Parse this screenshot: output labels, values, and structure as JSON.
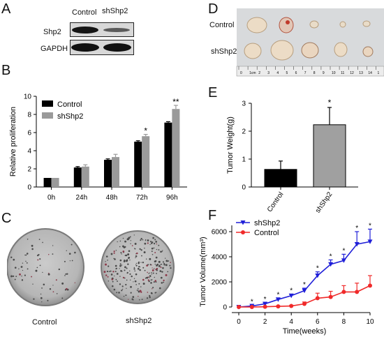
{
  "figure": {
    "panel_labels": [
      "A",
      "B",
      "C",
      "D",
      "E",
      "F"
    ]
  },
  "panel_a": {
    "col_labels": [
      "Control",
      "shShp2"
    ],
    "row_labels": [
      "Shp2",
      "GAPDH"
    ]
  },
  "panel_c": {
    "labels": [
      "Control",
      "shShp2"
    ]
  },
  "panel_d": {
    "row_labels": [
      "Control",
      "shShp2"
    ],
    "ruler_labels": [
      "0",
      "1cm",
      "2",
      "3",
      "4",
      "5",
      "6",
      "7",
      "8",
      "9",
      "10",
      "11",
      "12",
      "13",
      "14",
      "1"
    ]
  },
  "chart_data": [
    {
      "id": "B",
      "type": "bar",
      "ylabel": "Relative proliferation",
      "xlabel": "",
      "categories": [
        "0h",
        "24h",
        "48h",
        "72h",
        "96h"
      ],
      "series": [
        {
          "name": "Control",
          "color": "#000000",
          "values": [
            1.0,
            2.15,
            3.0,
            5.0,
            7.1
          ],
          "errors": [
            0,
            0.1,
            0.1,
            0.1,
            0.1
          ]
        },
        {
          "name": "shShp2",
          "color": "#9a9a9a",
          "values": [
            1.0,
            2.25,
            3.3,
            5.6,
            8.6
          ],
          "errors": [
            0,
            0.2,
            0.3,
            0.2,
            0.4
          ]
        }
      ],
      "significance": [
        "",
        "",
        "",
        "*",
        "**"
      ],
      "ylim": [
        0,
        10
      ],
      "yticks": [
        0,
        2,
        4,
        6,
        8,
        10
      ],
      "legend_position": "top-left"
    },
    {
      "id": "E",
      "type": "bar",
      "ylabel": "Tumor Weight(g)",
      "xlabel": "",
      "categories": [
        "Control",
        "shShp2"
      ],
      "values": [
        0.63,
        2.23
      ],
      "errors": [
        0.3,
        0.62
      ],
      "colors": [
        "#000000",
        "#a0a0a0"
      ],
      "significance": [
        "",
        "*"
      ],
      "ylim": [
        0,
        3
      ],
      "yticks": [
        0,
        1,
        2,
        3
      ]
    },
    {
      "id": "F",
      "type": "line",
      "ylabel": "Tumor Volume(mm³)",
      "xlabel": "Time(weeks)",
      "x": [
        0,
        1,
        2,
        3,
        4,
        5,
        6,
        7,
        8,
        9,
        10
      ],
      "series": [
        {
          "name": "shShp2",
          "color": "#1f1fd8",
          "marker": "triangle-down",
          "values": [
            0,
            80,
            250,
            600,
            900,
            1300,
            2500,
            3400,
            3700,
            5000,
            5200
          ],
          "errors": [
            0,
            60,
            80,
            100,
            120,
            200,
            300,
            350,
            500,
            1000,
            1000
          ]
        },
        {
          "name": "Control",
          "color": "#f02a2a",
          "marker": "circle",
          "values": [
            0,
            0,
            20,
            50,
            80,
            250,
            700,
            800,
            1200,
            1200,
            1700
          ],
          "errors": [
            0,
            20,
            30,
            40,
            60,
            150,
            400,
            450,
            500,
            700,
            800
          ]
        }
      ],
      "significance": [
        "",
        "*",
        "*",
        "*",
        "*",
        "*",
        "*",
        "*",
        "*",
        "*",
        "*"
      ],
      "xlim": [
        0,
        10
      ],
      "ylim": [
        0,
        6500
      ],
      "xticks": [
        0,
        2,
        4,
        6,
        8,
        10
      ],
      "yticks": [
        0,
        2000,
        4000,
        6000
      ],
      "legend_position": "top-left"
    }
  ]
}
